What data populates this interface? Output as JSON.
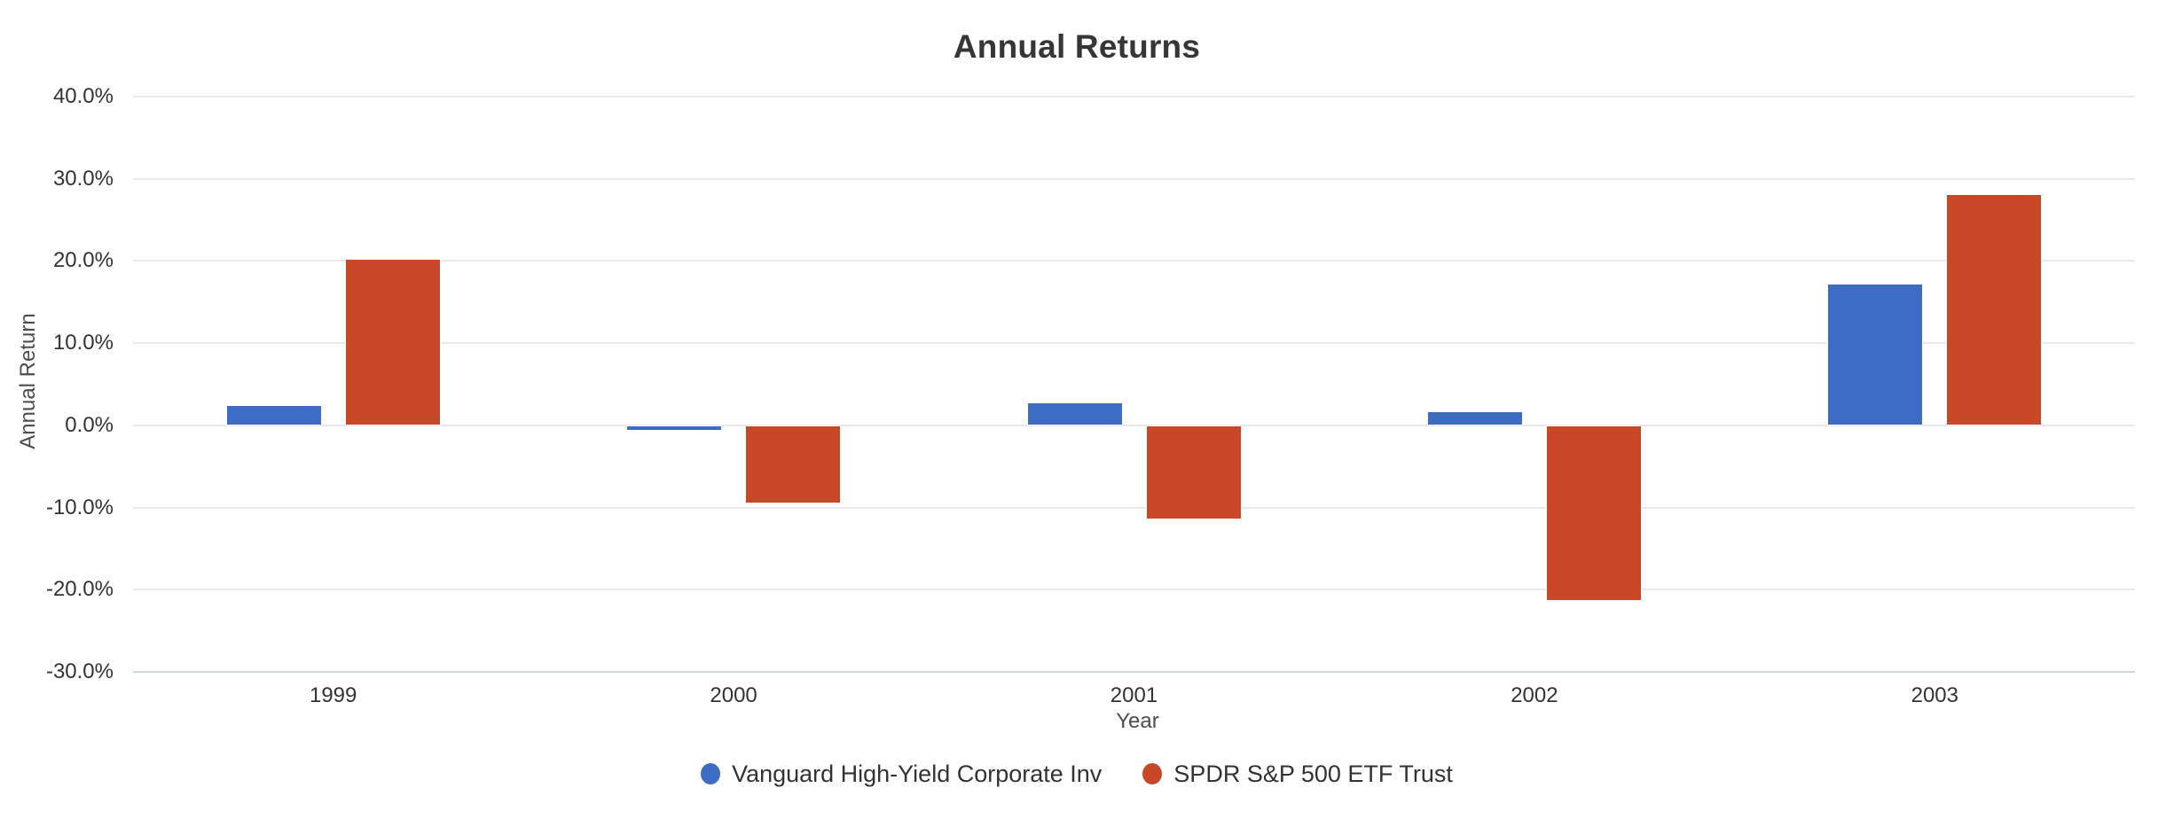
{
  "chart_data": {
    "type": "bar",
    "title": "Annual Returns",
    "xlabel": "Year",
    "ylabel": "Annual Return",
    "categories": [
      "1999",
      "2000",
      "2001",
      "2002",
      "2003"
    ],
    "series": [
      {
        "name": "Vanguard High-Yield Corporate Inv",
        "color": "#3d6cc4",
        "values": [
          2.5,
          -0.7,
          2.8,
          1.7,
          17.2
        ]
      },
      {
        "name": "SPDR S&P 500 ETF Trust",
        "color": "#c84727",
        "values": [
          20.3,
          -9.5,
          -11.5,
          -21.4,
          28.1
        ]
      }
    ],
    "ylim": [
      -30,
      40
    ],
    "yticks": {
      "values": [
        40,
        30,
        20,
        10,
        0,
        -10,
        -20,
        -30
      ],
      "labels": [
        "40.0%",
        "30.0%",
        "20.0%",
        "10.0%",
        "0.0%",
        "-10.0%",
        "-20.0%",
        "-30.0%"
      ]
    },
    "grid": true,
    "legend_position": "bottom",
    "style": {
      "background": "#ffffff",
      "gridline_color": "#e9e9e9",
      "axis_line_color": "#ccd6eb",
      "title_color": "#363636",
      "tick_label_color": "#333333",
      "axis_title_color": "#4d4d4d",
      "legend_text_color": "#333333"
    }
  }
}
